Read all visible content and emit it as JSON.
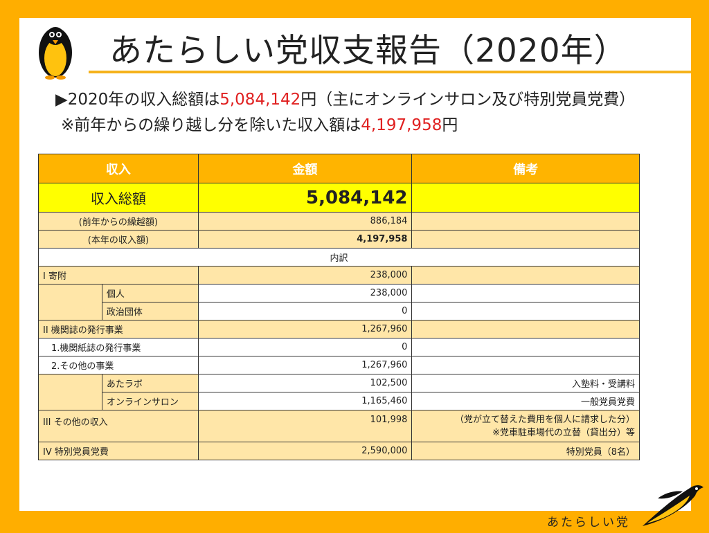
{
  "title": "あたらしい党収支報告（2020年）",
  "summary": {
    "line1_prefix": "▶2020年の収入総額は",
    "line1_amount": "5,084,142",
    "line1_suffix": "円（主にオンラインサロン及び特別党員党費）",
    "line2_prefix": "※前年からの繰り越し分を除いた収入額は",
    "line2_amount": "4,197,958",
    "line2_suffix": "円"
  },
  "table": {
    "headers": [
      "収入",
      "金額",
      "備考"
    ],
    "total": {
      "label": "収入総額",
      "amount": "5,084,142",
      "note": ""
    },
    "carryover": {
      "label": "(前年からの繰越額)",
      "amount": "886,184"
    },
    "current": {
      "label": "(本年の収入額)",
      "amount": "4,197,958"
    },
    "breakdown_label": "内訳",
    "donation": {
      "label": "I 寄附",
      "amount": "238,000",
      "items": [
        {
          "label": "個人",
          "amount": "238,000",
          "note": ""
        },
        {
          "label": "政治団体",
          "amount": "0",
          "note": ""
        }
      ]
    },
    "publication": {
      "label": "II 機関誌の発行事業",
      "amount": "1,267,960",
      "sub1": {
        "label": "1.機関紙誌の発行事業",
        "amount": "0"
      },
      "sub2": {
        "label": "2.その他の事業",
        "amount": "1,267,960"
      },
      "items": [
        {
          "label": "あたラボ",
          "amount": "102,500",
          "note": "入塾料・受講料"
        },
        {
          "label": "オンラインサロン",
          "amount": "1,165,460",
          "note": "一般党員党費"
        }
      ]
    },
    "other": {
      "label": "III その他の収入",
      "amount": "101,998",
      "note1": "（党が立て替えた費用を個人に請求した分）",
      "note2": "※党車駐車場代の立替（貸出分）等"
    },
    "special": {
      "label": "IV 特別党員党費",
      "amount": "2,590,000",
      "note": "特別党員（8名）"
    }
  },
  "footer": {
    "logo_text": "あたらしい党"
  },
  "colors": {
    "frame": "#FFAE00",
    "header": "#FFB400",
    "total": "#FFFF00",
    "row": "#FFE6A8",
    "accent": "#E02020"
  }
}
